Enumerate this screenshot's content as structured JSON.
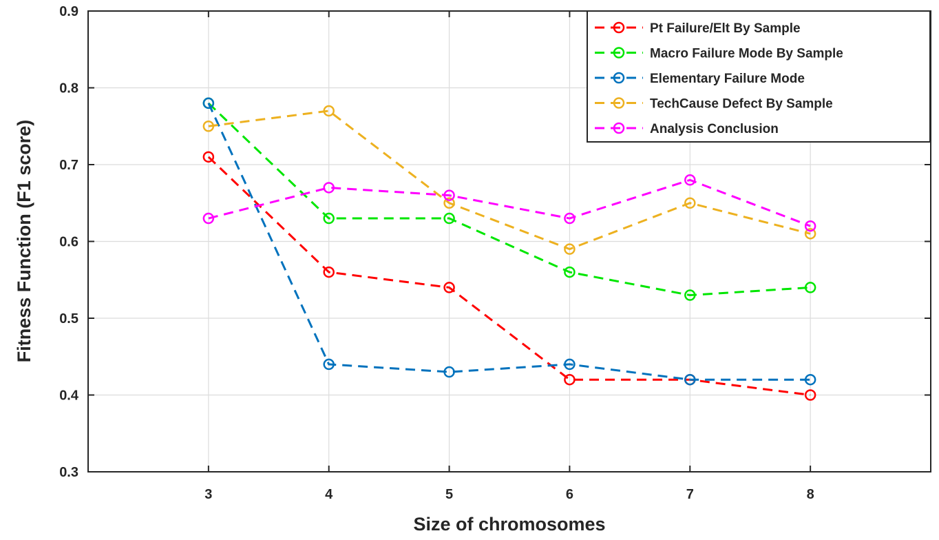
{
  "chart_data": {
    "type": "line",
    "title": "",
    "xlabel": "Size of chromosomes",
    "ylabel": "Fitness Function (F1 score)",
    "x": [
      3,
      4,
      5,
      6,
      7,
      8
    ],
    "xlim": [
      2,
      9
    ],
    "ylim": [
      0.3,
      0.9
    ],
    "xticks": [
      "3",
      "4",
      "5",
      "6",
      "7",
      "8"
    ],
    "yticks": [
      "0.3",
      "0.4",
      "0.5",
      "0.6",
      "0.7",
      "0.8",
      "0.9"
    ],
    "grid": true,
    "legend_position": "top-right",
    "line_style": "dashed",
    "marker": "circle",
    "series": [
      {
        "name": "Pt Failure/Elt By Sample",
        "color": "#ff0000",
        "values": [
          0.71,
          0.56,
          0.54,
          0.42,
          0.42,
          0.4
        ]
      },
      {
        "name": "Macro Failure Mode By Sample",
        "color": "#00e600",
        "values": [
          0.78,
          0.63,
          0.63,
          0.56,
          0.53,
          0.54
        ]
      },
      {
        "name": "Elementary Failure Mode",
        "color": "#0072bd",
        "values": [
          0.78,
          0.44,
          0.43,
          0.44,
          0.42,
          0.42
        ]
      },
      {
        "name": "TechCause Defect By Sample",
        "color": "#edb120",
        "values": [
          0.75,
          0.77,
          0.65,
          0.59,
          0.65,
          0.61
        ]
      },
      {
        "name": "Analysis Conclusion",
        "color": "#ff00ff",
        "values": [
          0.63,
          0.67,
          0.66,
          0.63,
          0.68,
          0.62
        ]
      }
    ]
  }
}
